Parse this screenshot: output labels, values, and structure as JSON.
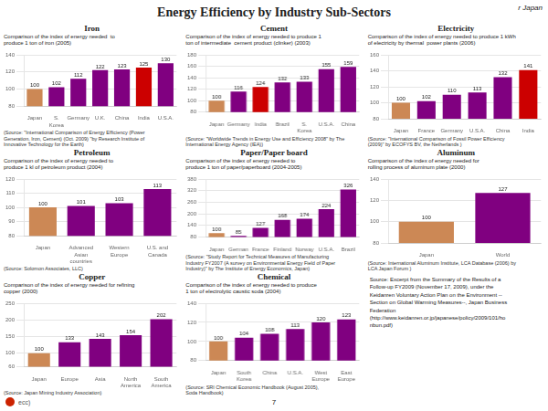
{
  "title": "Energy Efficiency by Industry Sub-Sectors",
  "annotations": [
    "r Japan",
    "Source: Excerpt from the Summary of the Results of a\nFollow-up FY2009 (November 17, 2009), under the\nKeidanren Voluntary Action Plan on the Environment --\nSection on Global Warming Measures--, Japan Business\nFederation\n(http://www.keidanren.or.jp/japanese/policy/2009/101/ho\nnbun.pdf)",
    "7",
    "ecc)"
  ],
  "chart_data": [
    {
      "type": "bar",
      "title": "Iron",
      "subtitle": "Comparison of the index of energy needed  to\nproduce 1 ton of iron (2005)",
      "categories": [
        "Japan",
        "S.\nKorea",
        "Germany",
        "U.K.",
        "China",
        "India",
        "U.S.A."
      ],
      "values": [
        100,
        102,
        112,
        122,
        123,
        125,
        130
      ],
      "colors": [
        "#cc8855",
        "#800080",
        "#800080",
        "#800080",
        "#800080",
        "#cc0000",
        "#800080"
      ],
      "ylim": [
        80,
        140
      ],
      "yticks": [
        80,
        100,
        120,
        140
      ],
      "grid": true,
      "data_labels": true,
      "annotations": [
        "(Source: \"International Comparison of Energy Efficiency (Power\nGeneration, Iron, Cement) (Oct. 2009) \"by Research Institute of\nInnovative Technology for the Earth)"
      ]
    },
    {
      "type": "bar",
      "title": "Cement",
      "subtitle": "Comparison of the index of energy needed to produce 1\nton of intermediate  cement product (clinker) (2003)",
      "categories": [
        "Japan",
        "Germany",
        "India",
        "Brazil",
        "S.\nKorea",
        "U.S.A.",
        "China"
      ],
      "values": [
        100,
        116,
        124,
        132,
        133,
        155,
        159
      ],
      "colors": [
        "#cc8855",
        "#800080",
        "#cc0000",
        "#800080",
        "#800080",
        "#800080",
        "#800080"
      ],
      "ylim": [
        80,
        180
      ],
      "yticks": [
        80,
        100,
        120,
        140,
        160,
        180
      ],
      "grid": true,
      "data_labels": true,
      "annotations": [
        "(Source: \"Worldwide Trends in Energy Use and Efficiency 2008\" by The\nInternational Energy Agency (IEA))"
      ]
    },
    {
      "type": "bar",
      "title": "Electricity",
      "subtitle": "Comparison of the index of energy needed to produce 1 kWh\nof electricity by thermal  power plants (2006)",
      "categories": [
        "Japan",
        "France",
        "Germany",
        "U.S.A.",
        "China",
        "India"
      ],
      "values": [
        100,
        102,
        110,
        113,
        132,
        141
      ],
      "colors": [
        "#cc8855",
        "#800080",
        "#800080",
        "#800080",
        "#800080",
        "#cc0000"
      ],
      "ylim": [
        80,
        160
      ],
      "yticks": [
        80,
        100,
        120,
        140,
        160
      ],
      "grid": true,
      "data_labels": true,
      "annotations": [
        "(Source: \"International Comparison of Fossil Power Efficiency\n(2009)\" by ECOFYS BV, the Netherlands )"
      ]
    },
    {
      "type": "bar",
      "title": "Petroleum",
      "subtitle": "Comparison of the index of energy needed to\nproduce 1 kl of petroleum product (2004)",
      "categories": [
        "Japan",
        "Advanced\nAsian\ncountries",
        "Western\nEurope",
        "U.S. and\nCanada"
      ],
      "values": [
        100,
        101,
        103,
        113
      ],
      "colors": [
        "#cc8855",
        "#800080",
        "#800080",
        "#800080"
      ],
      "ylim": [
        80,
        120
      ],
      "yticks": [
        80,
        90,
        100,
        110,
        120
      ],
      "grid": true,
      "data_labels": true,
      "annotations": [
        "(Source: Solomon Associates, LLC)"
      ]
    },
    {
      "type": "bar",
      "title": "Paper/Paper board",
      "subtitle": "Comparison of the index of energy needed to\nproduce 1 ton of paper/paperboard (2004-2005)",
      "categories": [
        "Japan",
        "German",
        "France",
        "Finland",
        "Norway",
        "U.S.A.",
        "Brazil"
      ],
      "values": [
        100,
        85,
        127,
        168,
        174,
        224,
        326
      ],
      "colors": [
        "#cc8855",
        "#800080",
        "#800080",
        "#800080",
        "#800080",
        "#800080",
        "#800080"
      ],
      "ylim": [
        80,
        380
      ],
      "yticks": [
        80,
        140,
        200,
        260,
        320,
        380
      ],
      "grid": true,
      "data_labels": true,
      "annotations": [
        "(Source: \"Study Report for Technical Measures of Manufacturing\nIndustry FY2007 (A survey on Environmental Energy Field of Paper\nIndustry)\" by The Institute of Energy Economics, Japan)"
      ]
    },
    {
      "type": "bar",
      "title": "Aluminum",
      "subtitle": "Comparison of the index of energy needed for\nrolling process of aluminum plate (2000)",
      "categories": [
        "Japan",
        "World"
      ],
      "values": [
        100,
        127
      ],
      "colors": [
        "#cc8855",
        "#800080"
      ],
      "ylim": [
        80,
        140
      ],
      "yticks": [
        80,
        100,
        120,
        140
      ],
      "grid": true,
      "data_labels": true,
      "annotations": [
        "(Source: International Aluminum Institute, LCA Database (2006) by\nLCA Japan Forum )"
      ]
    },
    {
      "type": "bar",
      "title": "Copper",
      "subtitle": "Comparison of the index of energy needed for refining\ncopper (2000)",
      "categories": [
        "Japan",
        "Europe",
        "Asia",
        "North\nAmerica",
        "South\nAmerica"
      ],
      "values": [
        100,
        133,
        143,
        154,
        202
      ],
      "colors": [
        "#cc8855",
        "#800080",
        "#800080",
        "#800080",
        "#800080"
      ],
      "ylim": [
        60,
        250
      ],
      "yticks": [
        60,
        100,
        150,
        200,
        250
      ],
      "grid": true,
      "data_labels": true,
      "annotations": [
        "(Source: Japan Mining Industry Association)"
      ]
    },
    {
      "type": "bar",
      "title": "Chemical",
      "subtitle": "Comparison of the index of energy needed to produce\n1 ton of electrolytic caustic soda (2004)",
      "categories": [
        "Japan",
        "South\nKorea",
        "China",
        "U.S.A.",
        "West\nEurope",
        "East\nEurope"
      ],
      "values": [
        100,
        104,
        108,
        113,
        120,
        123
      ],
      "colors": [
        "#cc8855",
        "#800080",
        "#800080",
        "#800080",
        "#800080",
        "#800080"
      ],
      "ylim": [
        80,
        140
      ],
      "yticks": [
        80,
        100,
        120,
        140
      ],
      "grid": true,
      "data_labels": true,
      "annotations": [
        "(Source: SRI Chemical Economic Handbook (August 2005),\nSoda Handbook)"
      ]
    }
  ]
}
